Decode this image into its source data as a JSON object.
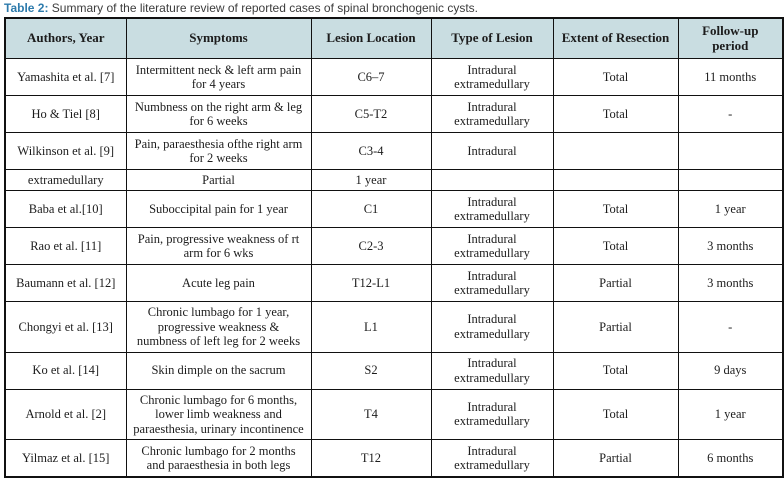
{
  "caption": {
    "label": "Table 2:",
    "text": " Summary of the literature review of reported cases of spinal bronchogenic cysts."
  },
  "colors": {
    "caption_label": "#2d7bac",
    "header_bg": "#c9dde1",
    "border": "#111111"
  },
  "table": {
    "headers": [
      "Authors, Year",
      "Symptoms",
      "Lesion Location",
      "Type of Lesion",
      "Extent of Resection",
      "Follow-up period"
    ],
    "rows": [
      {
        "cells": [
          "Yamashita et al. [7]",
          "Intermittent neck & left arm pain for 4 years",
          "C6–7",
          "Intradural extramedullary",
          "Total",
          "11 months"
        ],
        "short": false
      },
      {
        "cells": [
          "Ho & Tiel [8]",
          "Numbness on the right arm & leg for 6 weeks",
          "C5-T2",
          "Intradural extramedullary",
          "Total",
          "-"
        ],
        "short": false
      },
      {
        "cells": [
          "Wilkinson et al. [9]",
          "Pain, paraesthesia ofthe right arm for 2 weeks",
          "C3-4",
          "Intradural",
          "",
          ""
        ],
        "short": false
      },
      {
        "cells": [
          "extramedullary",
          "Partial",
          "1 year",
          "",
          "",
          ""
        ],
        "short": true
      },
      {
        "cells": [
          "Baba et al.[10]",
          "Suboccipital pain for 1 year",
          "C1",
          "Intradural extramedullary",
          "Total",
          "1 year"
        ],
        "short": false
      },
      {
        "cells": [
          "Rao et al. [11]",
          "Pain, progressive weakness of rt arm for 6 wks",
          "C2-3",
          "Intradural extramedullary",
          "Total",
          "3 months"
        ],
        "short": false
      },
      {
        "cells": [
          "Baumann et al. [12]",
          "Acute leg pain",
          "T12-L1",
          "Intradural extramedullary",
          "Partial",
          "3 months"
        ],
        "short": false
      },
      {
        "cells": [
          "Chongyi et al. [13]",
          "Chronic lumbago for 1 year, progressive weakness & numbness of left leg for 2 weeks",
          "L1",
          "Intradural extramedullary",
          "Partial",
          "-"
        ],
        "short": false
      },
      {
        "cells": [
          "Ko et al. [14]",
          "Skin dimple on the sacrum",
          "S2",
          "Intradural extramedullary",
          "Total",
          "9 days"
        ],
        "short": false
      },
      {
        "cells": [
          "Arnold et al. [2]",
          "Chronic lumbago for 6 months, lower limb weakness and paraesthesia, urinary incontinence",
          "T4",
          "Intradural extramedullary",
          "Total",
          "1 year"
        ],
        "short": false
      },
      {
        "cells": [
          "Yilmaz et al. [15]",
          "Chronic lumbago for 2 months and paraesthesia in both legs",
          "T12",
          "Intradural extramedullary",
          "Partial",
          "6 months"
        ],
        "short": false
      }
    ]
  }
}
